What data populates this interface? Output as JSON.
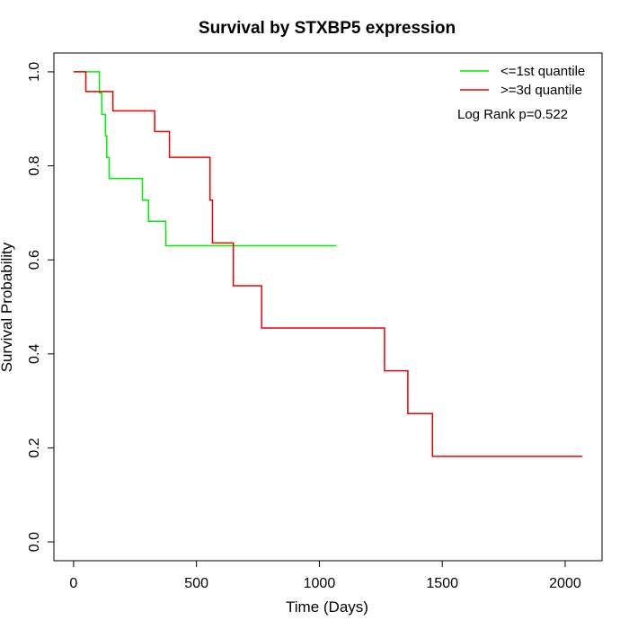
{
  "chart_data": {
    "type": "line",
    "subtype": "kaplan-meier step",
    "title": "Survival by STXBP5 expression",
    "xlabel": "Time (Days)",
    "ylabel": "Survival Probability",
    "xlim": [
      -80,
      2150
    ],
    "ylim": [
      -0.04,
      1.04
    ],
    "x_ticks": [
      0,
      500,
      1000,
      1500,
      2000
    ],
    "y_ticks": [
      0.0,
      0.2,
      0.4,
      0.6,
      0.8,
      1.0
    ],
    "x_tick_labels": [
      "0",
      "500",
      "1000",
      "1500",
      "2000"
    ],
    "y_tick_labels": [
      "0.0",
      "0.2",
      "0.4",
      "0.6",
      "0.8",
      "1.0"
    ],
    "grid": false,
    "legend_position": "top-right",
    "annotation": "Log Rank p=0.522",
    "series": [
      {
        "name": "<=1st quantile",
        "color": "#00ee00",
        "steps": [
          [
            0,
            1.0
          ],
          [
            105,
            0.955
          ],
          [
            115,
            0.909
          ],
          [
            130,
            0.864
          ],
          [
            135,
            0.818
          ],
          [
            145,
            0.773
          ],
          [
            280,
            0.727
          ],
          [
            305,
            0.682
          ],
          [
            375,
            0.63
          ],
          [
            1070,
            0.63
          ]
        ]
      },
      {
        "name": ">=3d quantile",
        "color": "#ee0000",
        "steps": [
          [
            0,
            1.0
          ],
          [
            50,
            0.958
          ],
          [
            160,
            0.917
          ],
          [
            330,
            0.873
          ],
          [
            390,
            0.818
          ],
          [
            555,
            0.727
          ],
          [
            565,
            0.636
          ],
          [
            650,
            0.545
          ],
          [
            765,
            0.455
          ],
          [
            1265,
            0.364
          ],
          [
            1360,
            0.273
          ],
          [
            1460,
            0.182
          ],
          [
            2070,
            0.182
          ]
        ]
      }
    ]
  }
}
